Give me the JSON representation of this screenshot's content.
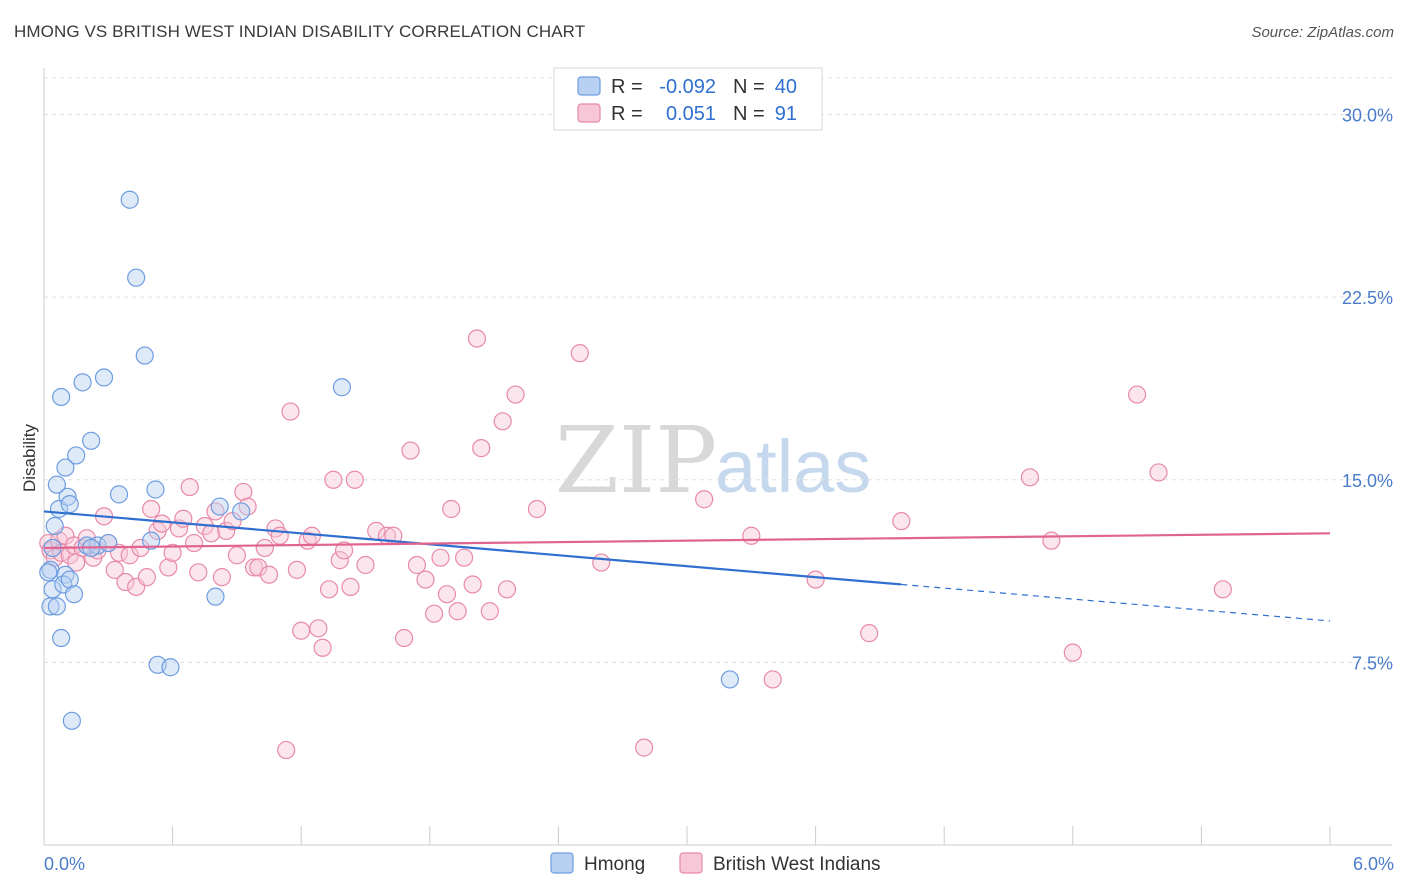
{
  "title": "HMONG VS BRITISH WEST INDIAN DISABILITY CORRELATION CHART",
  "source": "Source: ZipAtlas.com",
  "watermark": {
    "part1": "ZIP",
    "part2": "atlas"
  },
  "colors": {
    "hmong": "#6d9de0",
    "hmong_fill": "#b8d0f2",
    "bwi": "#e88aa8",
    "bwi_fill": "#f6c7d6",
    "hmong_line": "#2f6fd0",
    "bwi_line": "#e0648f",
    "axis_label": "#4a7cc9",
    "grid": "#e0e0e0"
  },
  "chart_data": {
    "type": "scatter",
    "xlabel": "",
    "ylabel": "Disability",
    "xlim": [
      0,
      6.0
    ],
    "ylim": [
      0,
      31.5
    ],
    "x_tick_labels": [
      {
        "value": 0.0,
        "label": "0.0%"
      },
      {
        "value": 6.0,
        "label": "6.0%"
      }
    ],
    "y_tick_labels": [
      {
        "value": 7.5,
        "label": "7.5%"
      },
      {
        "value": 15.0,
        "label": "15.0%"
      },
      {
        "value": 22.5,
        "label": "22.5%"
      },
      {
        "value": 30.0,
        "label": "30.0%"
      }
    ],
    "grid": true,
    "legend_position": "top-center",
    "legend": [
      {
        "series": "Hmong",
        "r_label": "R =",
        "r_value": "-0.092",
        "n_label": "N =",
        "n_value": "40"
      },
      {
        "series": "British West Indians",
        "r_label": "R =",
        "r_value": "0.051",
        "n_label": "N =",
        "n_value": "91"
      }
    ],
    "series": [
      {
        "name": "Hmong",
        "trend": {
          "x": [
            0.0,
            4.0
          ],
          "y": [
            13.7,
            10.7
          ],
          "dashed_to": [
            6.0,
            9.2
          ]
        },
        "points": [
          [
            0.04,
            12.2
          ],
          [
            0.03,
            11.3
          ],
          [
            0.04,
            10.5
          ],
          [
            0.03,
            9.8
          ],
          [
            0.05,
            13.1
          ],
          [
            0.06,
            14.8
          ],
          [
            0.07,
            13.8
          ],
          [
            0.08,
            18.4
          ],
          [
            0.1,
            15.5
          ],
          [
            0.11,
            14.3
          ],
          [
            0.12,
            14.0
          ],
          [
            0.1,
            11.1
          ],
          [
            0.09,
            10.7
          ],
          [
            0.12,
            10.9
          ],
          [
            0.14,
            10.3
          ],
          [
            0.15,
            16.0
          ],
          [
            0.18,
            19.0
          ],
          [
            0.2,
            12.3
          ],
          [
            0.22,
            16.6
          ],
          [
            0.25,
            12.3
          ],
          [
            0.28,
            19.2
          ],
          [
            0.3,
            12.4
          ],
          [
            0.35,
            14.4
          ],
          [
            0.4,
            26.5
          ],
          [
            0.43,
            23.3
          ],
          [
            0.47,
            20.1
          ],
          [
            0.5,
            12.5
          ],
          [
            0.52,
            14.6
          ],
          [
            0.53,
            7.4
          ],
          [
            0.59,
            7.3
          ],
          [
            0.8,
            10.2
          ],
          [
            0.82,
            13.9
          ],
          [
            0.92,
            13.7
          ],
          [
            1.39,
            18.8
          ],
          [
            3.2,
            6.8
          ],
          [
            0.06,
            9.8
          ],
          [
            0.08,
            8.5
          ],
          [
            0.13,
            5.1
          ],
          [
            0.02,
            11.2
          ],
          [
            0.22,
            12.2
          ]
        ]
      },
      {
        "name": "British West Indians",
        "trend": {
          "x": [
            0.0,
            6.0
          ],
          "y": [
            12.2,
            12.8
          ]
        },
        "points": [
          [
            0.02,
            12.4
          ],
          [
            0.03,
            12.1
          ],
          [
            0.05,
            11.8
          ],
          [
            0.07,
            12.5
          ],
          [
            0.08,
            12.0
          ],
          [
            0.1,
            12.7
          ],
          [
            0.12,
            11.9
          ],
          [
            0.14,
            12.3
          ],
          [
            0.15,
            11.6
          ],
          [
            0.18,
            12.2
          ],
          [
            0.2,
            12.6
          ],
          [
            0.23,
            11.8
          ],
          [
            0.25,
            12.1
          ],
          [
            0.28,
            13.5
          ],
          [
            0.3,
            12.4
          ],
          [
            0.33,
            11.3
          ],
          [
            0.35,
            12.0
          ],
          [
            0.38,
            10.8
          ],
          [
            0.4,
            11.9
          ],
          [
            0.43,
            10.6
          ],
          [
            0.45,
            12.2
          ],
          [
            0.48,
            11.0
          ],
          [
            0.5,
            13.8
          ],
          [
            0.53,
            12.9
          ],
          [
            0.55,
            13.2
          ],
          [
            0.58,
            11.4
          ],
          [
            0.6,
            12.0
          ],
          [
            0.63,
            13.0
          ],
          [
            0.65,
            13.4
          ],
          [
            0.68,
            14.7
          ],
          [
            0.7,
            12.4
          ],
          [
            0.72,
            11.2
          ],
          [
            0.75,
            13.1
          ],
          [
            0.78,
            12.8
          ],
          [
            0.8,
            13.7
          ],
          [
            0.83,
            11.0
          ],
          [
            0.85,
            12.9
          ],
          [
            0.88,
            13.3
          ],
          [
            0.9,
            11.9
          ],
          [
            0.93,
            14.5
          ],
          [
            0.95,
            13.9
          ],
          [
            0.98,
            11.4
          ],
          [
            1.0,
            11.4
          ],
          [
            1.03,
            12.2
          ],
          [
            1.05,
            11.1
          ],
          [
            1.08,
            13.0
          ],
          [
            1.1,
            12.7
          ],
          [
            1.13,
            3.9
          ],
          [
            1.15,
            17.8
          ],
          [
            1.18,
            11.3
          ],
          [
            1.2,
            8.8
          ],
          [
            1.23,
            12.5
          ],
          [
            1.25,
            12.7
          ],
          [
            1.28,
            8.9
          ],
          [
            1.3,
            8.1
          ],
          [
            1.33,
            10.5
          ],
          [
            1.35,
            15.0
          ],
          [
            1.38,
            11.7
          ],
          [
            1.4,
            12.1
          ],
          [
            1.43,
            10.6
          ],
          [
            1.45,
            15.0
          ],
          [
            1.5,
            11.5
          ],
          [
            1.55,
            12.9
          ],
          [
            1.6,
            12.7
          ],
          [
            1.63,
            12.7
          ],
          [
            1.68,
            8.5
          ],
          [
            1.71,
            16.2
          ],
          [
            1.74,
            11.5
          ],
          [
            1.78,
            10.9
          ],
          [
            1.82,
            9.5
          ],
          [
            1.85,
            11.8
          ],
          [
            1.88,
            10.3
          ],
          [
            1.9,
            13.8
          ],
          [
            1.93,
            9.6
          ],
          [
            1.96,
            11.8
          ],
          [
            2.0,
            10.7
          ],
          [
            2.02,
            20.8
          ],
          [
            2.04,
            16.3
          ],
          [
            2.08,
            9.6
          ],
          [
            2.14,
            17.4
          ],
          [
            2.16,
            10.5
          ],
          [
            2.2,
            18.5
          ],
          [
            2.3,
            13.8
          ],
          [
            2.5,
            20.2
          ],
          [
            2.6,
            11.6
          ],
          [
            2.8,
            4.0
          ],
          [
            3.08,
            14.2
          ],
          [
            3.3,
            12.7
          ],
          [
            3.4,
            6.8
          ],
          [
            3.6,
            10.9
          ],
          [
            3.85,
            8.7
          ]
        ],
        "extra_points": [
          [
            4.0,
            13.3
          ],
          [
            4.6,
            15.1
          ],
          [
            4.7,
            12.5
          ],
          [
            4.8,
            7.9
          ],
          [
            5.1,
            18.5
          ],
          [
            5.2,
            15.3
          ],
          [
            5.5,
            10.5
          ]
        ]
      }
    ]
  },
  "bottom_legend": [
    {
      "label": "Hmong"
    },
    {
      "label": "British West Indians"
    }
  ]
}
